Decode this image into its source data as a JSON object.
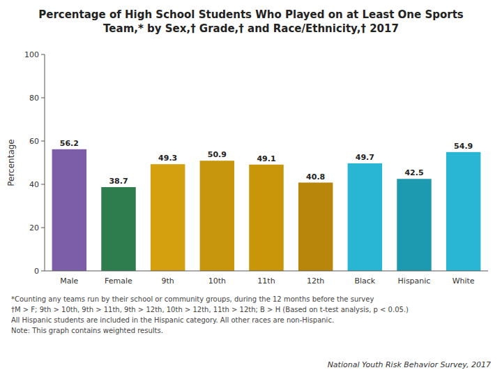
{
  "chart_data": {
    "type": "bar",
    "title": "Percentage of High School Students Who Played on at Least One Sports\nTeam,* by Sex,† Grade,† and Race/Ethnicity,† 2017",
    "categories": [
      "Male",
      "Female",
      "9th",
      "10th",
      "11th",
      "12th",
      "Black",
      "Hispanic",
      "White"
    ],
    "values": [
      56.2,
      38.7,
      49.3,
      50.9,
      49.1,
      40.8,
      49.7,
      42.5,
      54.9
    ],
    "colors": [
      "#7B5EA7",
      "#2E7D4F",
      "#D4A010",
      "#C8960C",
      "#C89608",
      "#B8860B",
      "#29B6D4",
      "#1E9AB0",
      "#29B6D4"
    ],
    "ylim": [
      0,
      100
    ],
    "yticks": [
      0,
      20,
      40,
      60,
      80,
      100
    ],
    "ylabel": "Percentage",
    "data_labels": true,
    "grid": false,
    "annotations": [
      "*Counting any teams run by their school or community groups, during the 12 months before the survey",
      "†M > F; 9th > 10th, 9th > 11th, 9th > 12th, 10th > 12th, 11th > 12th; B > H (Based on t-test analysis, p < 0.05.)",
      "All Hispanic students are included in the Hispanic category.  All other races are non-Hispanic.",
      "Note: This graph contains weighted results.",
      "National Youth Risk Behavior Survey, 2017"
    ]
  }
}
